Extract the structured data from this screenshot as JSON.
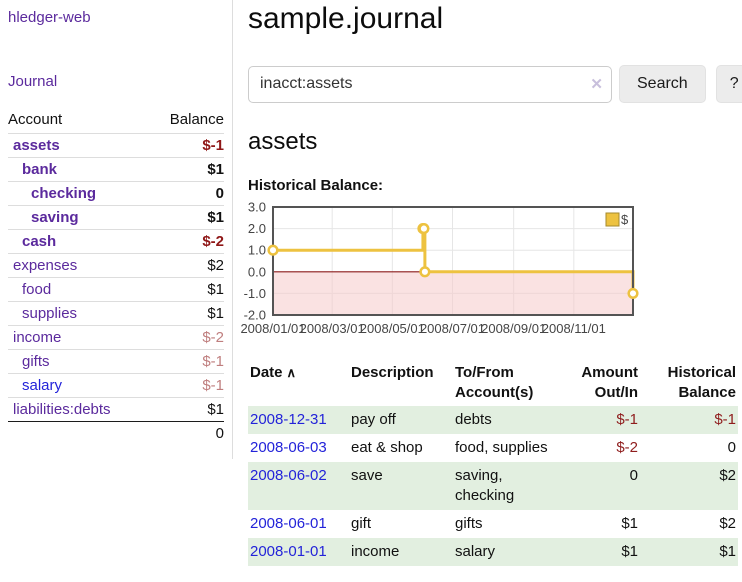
{
  "colors": {
    "link_purple": "#5b2a9d",
    "link_blue": "#2323d9",
    "negative_dark": "#8f1717",
    "negative_muted": "#bf7e7e",
    "row_shade_green": "#e2efe0",
    "chart_line": "#edc240",
    "chart_grid": "#e6e6e6",
    "chart_negative_fill": "#f6caca",
    "chart_zero_line": "#8b1a1a",
    "chart_border": "#545454",
    "legend_border": "#a58a2d"
  },
  "icons": {
    "sort_asc": "∧",
    "clear_search": "✕"
  },
  "sidebar": {
    "brand": "hledger-web",
    "journal_label": "Journal",
    "accounts_table": {
      "headers": [
        "Account",
        "Balance"
      ],
      "rows": [
        {
          "account": "assets",
          "balance": "$-1",
          "indent": 1,
          "bold": true,
          "balance_tone": "dark-red",
          "link_tone": "purple"
        },
        {
          "account": "bank",
          "balance": "$1",
          "indent": 2,
          "bold": true,
          "balance_tone": "default",
          "link_tone": "purple"
        },
        {
          "account": "checking",
          "balance": "0",
          "indent": 3,
          "bold": true,
          "balance_tone": "default",
          "link_tone": "purple"
        },
        {
          "account": "saving",
          "balance": "$1",
          "indent": 3,
          "bold": true,
          "balance_tone": "default",
          "link_tone": "purple"
        },
        {
          "account": "cash",
          "balance": "$-2",
          "indent": 2,
          "bold": true,
          "balance_tone": "dark-red",
          "link_tone": "purple"
        },
        {
          "account": "expenses",
          "balance": "$2",
          "indent": 1,
          "bold": false,
          "balance_tone": "default",
          "link_tone": "purple"
        },
        {
          "account": "food",
          "balance": "$1",
          "indent": 2,
          "bold": false,
          "balance_tone": "default",
          "link_tone": "purple"
        },
        {
          "account": "supplies",
          "balance": "$1",
          "indent": 2,
          "bold": false,
          "balance_tone": "default",
          "link_tone": "purple"
        },
        {
          "account": "income",
          "balance": "$-2",
          "indent": 1,
          "bold": false,
          "balance_tone": "muted-red",
          "link_tone": "purple"
        },
        {
          "account": "gifts",
          "balance": "$-1",
          "indent": 2,
          "bold": false,
          "balance_tone": "muted-red",
          "link_tone": "purple"
        },
        {
          "account": "salary",
          "balance": "$-1",
          "indent": 2,
          "bold": false,
          "balance_tone": "muted-red",
          "link_tone": "blue"
        },
        {
          "account": "liabilities:debts",
          "balance": "$1",
          "indent": 1,
          "bold": false,
          "balance_tone": "default",
          "link_tone": "purple"
        }
      ],
      "total": "0"
    }
  },
  "main": {
    "title": "sample.journal",
    "search": {
      "value": "inacct:assets",
      "button_label": "Search",
      "help_label": "?"
    },
    "account_heading": "assets",
    "chart_label": "Historical Balance:",
    "register_table": {
      "headers": [
        {
          "label": "Date",
          "sorted": true,
          "align": "left"
        },
        {
          "label": "Description",
          "sorted": false,
          "align": "left"
        },
        {
          "label": "To/From Account(s)",
          "sorted": false,
          "align": "left"
        },
        {
          "label": "Amount Out/In",
          "sorted": false,
          "align": "right"
        },
        {
          "label": "Historical Balance",
          "sorted": false,
          "align": "right"
        }
      ],
      "rows": [
        {
          "date": "2008-12-31",
          "description": "pay off",
          "accounts": "debts",
          "amount": "$-1",
          "amount_negative": true,
          "balance": "$-1",
          "balance_negative": true,
          "shaded": true
        },
        {
          "date": "2008-06-03",
          "description": "eat & shop",
          "accounts": "food, supplies",
          "amount": "$-2",
          "amount_negative": true,
          "balance": "0",
          "balance_negative": false,
          "shaded": false
        },
        {
          "date": "2008-06-02",
          "description": "save",
          "accounts": "saving, checking",
          "amount": "0",
          "amount_negative": false,
          "balance": "$2",
          "balance_negative": false,
          "shaded": true
        },
        {
          "date": "2008-06-01",
          "description": "gift",
          "accounts": "gifts",
          "amount": "$1",
          "amount_negative": false,
          "balance": "$2",
          "balance_negative": false,
          "shaded": false
        },
        {
          "date": "2008-01-01",
          "description": "income",
          "accounts": "salary",
          "amount": "$1",
          "amount_negative": false,
          "balance": "$1",
          "balance_negative": false,
          "shaded": true
        }
      ]
    }
  },
  "chart_data": {
    "type": "line",
    "title": "Historical Balance",
    "style": "step",
    "series": [
      {
        "name": "$",
        "points": [
          {
            "date": "2008-01-01",
            "value": 1
          },
          {
            "date": "2008-06-01",
            "value": 2
          },
          {
            "date": "2008-06-02",
            "value": 2
          },
          {
            "date": "2008-06-03",
            "value": 0
          },
          {
            "date": "2008-12-31",
            "value": -1
          }
        ]
      }
    ],
    "x_range": [
      "2008/01/01",
      "2008/12/31"
    ],
    "x_ticks": [
      "2008/01/01",
      "2008/03/01",
      "2008/05/01",
      "2008/07/01",
      "2008/09/01",
      "2008/11/01"
    ],
    "y_ticks": [
      3.0,
      2.0,
      1.0,
      0.0,
      -1.0,
      -2.0
    ],
    "ylim": [
      -2,
      3
    ],
    "grid": true,
    "legend": {
      "label": "$",
      "position": "top-right"
    },
    "negative_region_shaded": true
  }
}
